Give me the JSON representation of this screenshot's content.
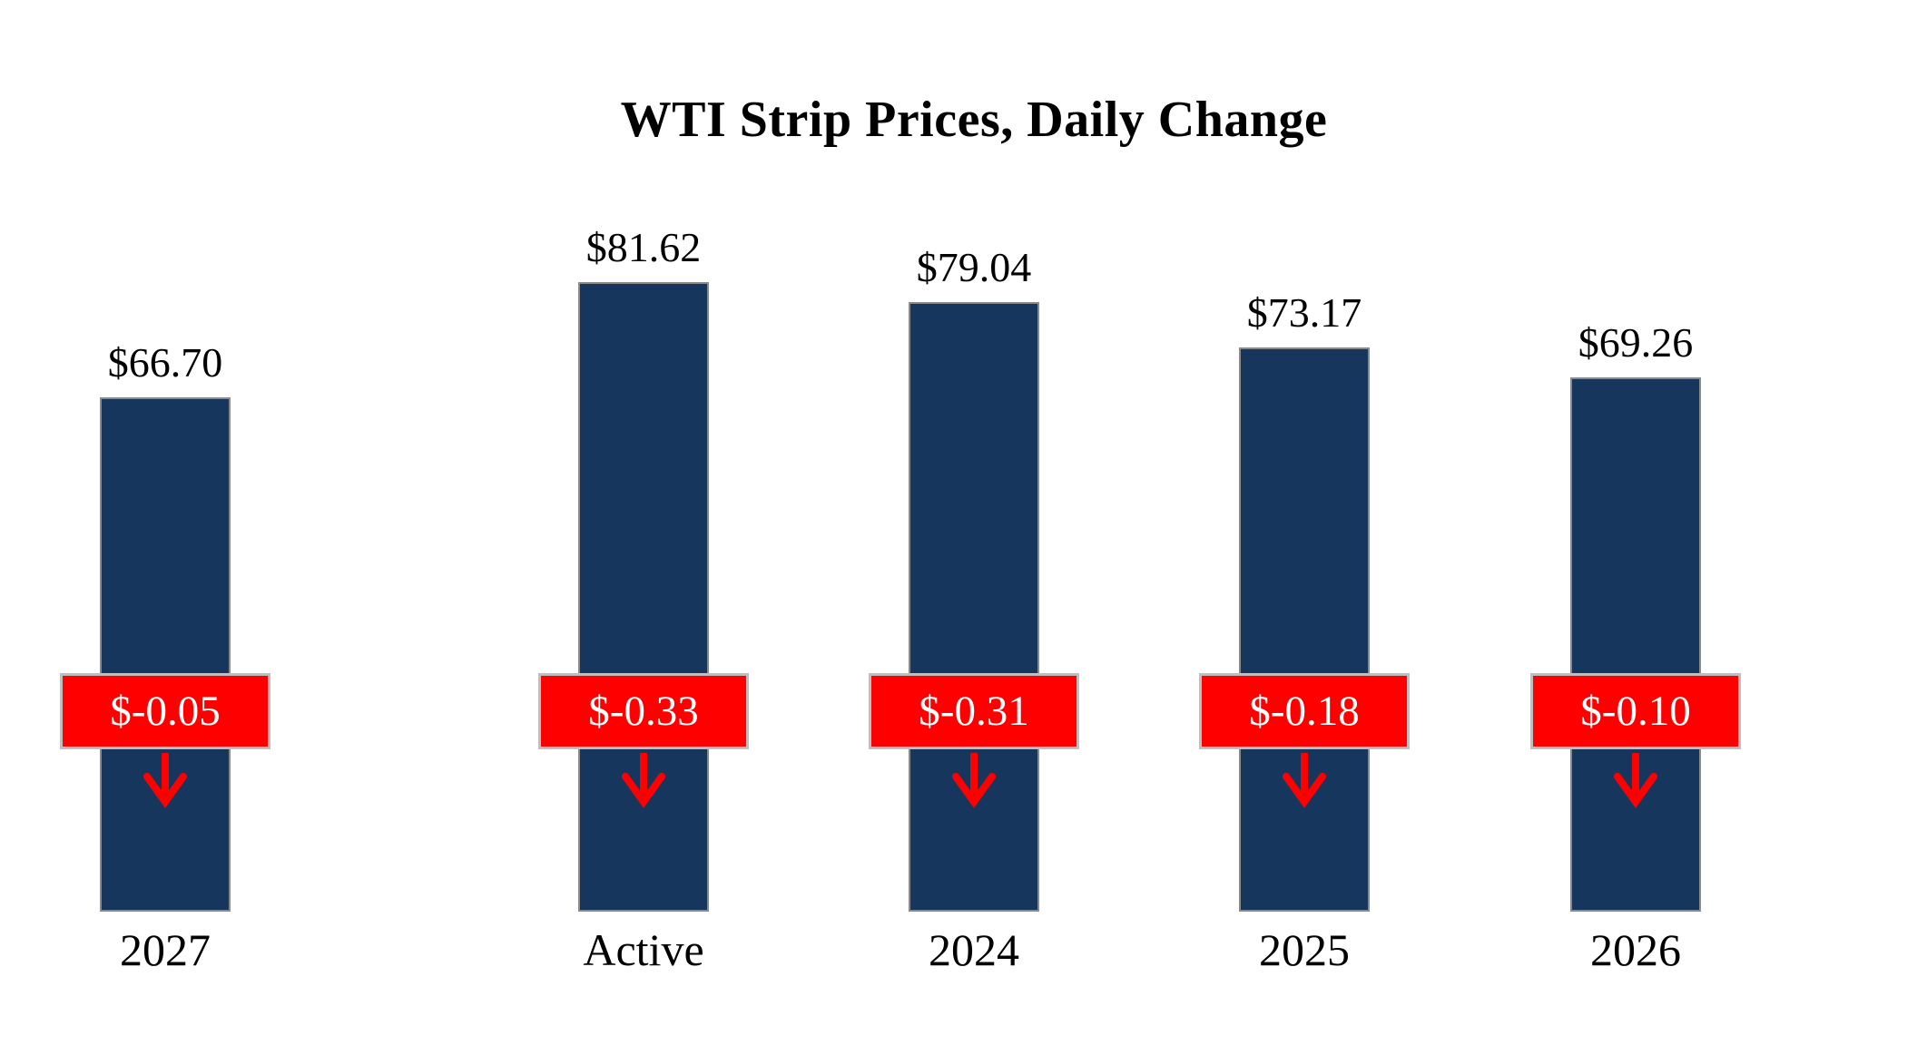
{
  "title": "WTI Strip Prices, Daily Change",
  "chart_data": {
    "type": "bar",
    "title": "WTI Strip Prices, Daily Change",
    "categories": [
      "Active",
      "2024",
      "2025",
      "2026",
      "2027"
    ],
    "series": [
      {
        "name": "WTI Strip Price",
        "values": [
          81.62,
          79.04,
          73.17,
          69.26,
          66.7
        ]
      },
      {
        "name": "Daily Change",
        "values": [
          -0.33,
          -0.31,
          -0.18,
          -0.1,
          -0.05
        ]
      }
    ],
    "value_labels": [
      "$81.62",
      "$79.04",
      "$73.17",
      "$69.26",
      "$66.70"
    ],
    "change_labels": [
      "$-0.33",
      "$-0.31",
      "$-0.18",
      "$-0.10",
      "$-0.05"
    ],
    "xlabel": "",
    "ylabel": "",
    "ylim": [
      0,
      100
    ],
    "grid": false,
    "legend_position": "none",
    "bar_color": "#17365D",
    "bar_border_color": "#8a8a8a",
    "change_badge_color": "#FF0000",
    "change_text_color": "#FFFFFF",
    "arrow_icon": "down-arrow",
    "arrow_color": "#FF0000",
    "background_color": "#FFFFFF"
  }
}
